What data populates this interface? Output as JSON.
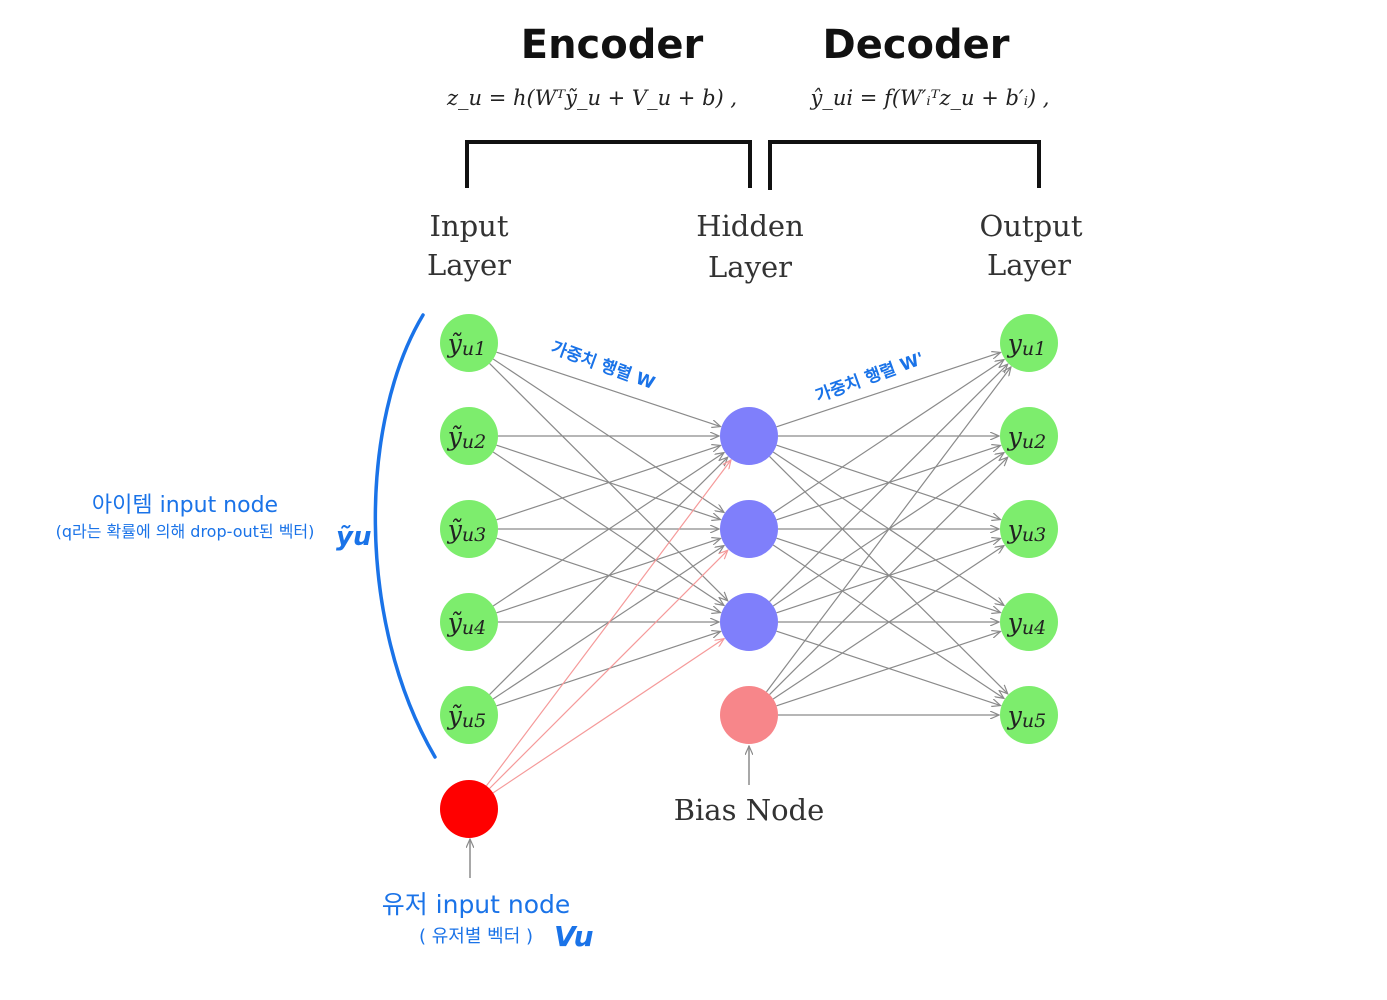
{
  "headers": {
    "encoder": "Encoder",
    "decoder": "Decoder",
    "encoder_formula": "z_u = h(Wᵀỹ_u + V_u + b) ,",
    "decoder_formula": "ŷ_ui = f(W′ᵢᵀz_u + b′ᵢ) ,"
  },
  "layers": {
    "input": [
      "Input",
      "Layer"
    ],
    "hidden": [
      "Hidden",
      "Layer"
    ],
    "output": [
      "Output",
      "Layer"
    ]
  },
  "input_nodes": [
    {
      "base": "ỹ",
      "sub": "u1"
    },
    {
      "base": "ỹ",
      "sub": "u2"
    },
    {
      "base": "ỹ",
      "sub": "u3"
    },
    {
      "base": "ỹ",
      "sub": "u4"
    },
    {
      "base": "ỹ",
      "sub": "u5"
    }
  ],
  "output_nodes": [
    {
      "base": "y",
      "sub": "u1"
    },
    {
      "base": "y",
      "sub": "u2"
    },
    {
      "base": "y",
      "sub": "u3"
    },
    {
      "base": "y",
      "sub": "u4"
    },
    {
      "base": "y",
      "sub": "u5"
    }
  ],
  "hidden_count": 3,
  "bias_label": "Bias Node",
  "annotations": {
    "weight_w": "가중치 행렬 W",
    "weight_w_prime": "가중치 행렬 W'",
    "item_input_title": "아이템 input node",
    "item_input_sub": "(q라는 확률에 의해 drop-out된 벡터)",
    "item_input_symbol": "ỹu",
    "user_input_title": "유저 input node",
    "user_input_sub": "( 유저별 벡터 )",
    "user_input_symbol": "Vu"
  },
  "colors": {
    "input_node": "#7ded6d",
    "output_node": "#7ded6d",
    "hidden_node": "#7f7ffb",
    "bias_node": "#f7868a",
    "user_node": "#ff0000",
    "edge": "#8a8a8a",
    "user_edge": "#f59a9a",
    "annotation": "#1a73e8"
  }
}
